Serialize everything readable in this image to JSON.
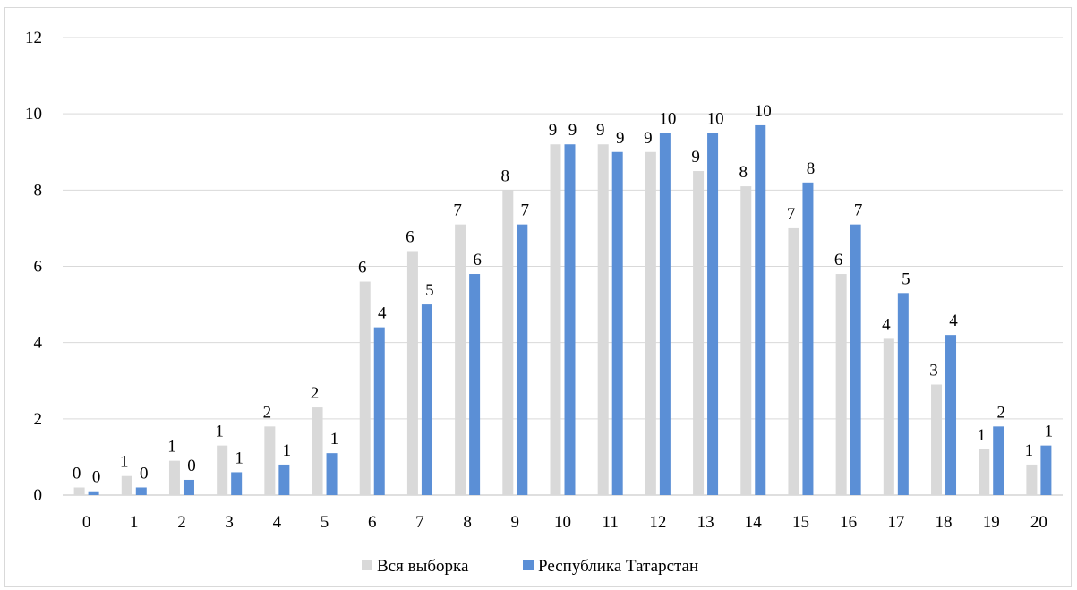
{
  "chart_data": {
    "type": "bar",
    "categories": [
      "0",
      "1",
      "2",
      "3",
      "4",
      "5",
      "6",
      "7",
      "8",
      "9",
      "10",
      "11",
      "12",
      "13",
      "14",
      "15",
      "16",
      "17",
      "18",
      "19",
      "20"
    ],
    "series": [
      {
        "name": "Вся выборка",
        "color": "#d9d9d9",
        "values": [
          0.2,
          0.5,
          0.9,
          1.3,
          1.8,
          2.3,
          5.6,
          6.4,
          7.1,
          8.0,
          9.2,
          9.2,
          9.0,
          8.5,
          8.1,
          7.0,
          5.8,
          4.1,
          2.9,
          1.2,
          0.8
        ],
        "labels": [
          "0",
          "1",
          "1",
          "1",
          "2",
          "2",
          "6",
          "6",
          "7",
          "8",
          "9",
          "9",
          "9",
          "9",
          "8",
          "7",
          "6",
          "4",
          "3",
          "1",
          "1"
        ]
      },
      {
        "name": "Республика Татарстан",
        "color": "#5b8fd6",
        "values": [
          0.1,
          0.2,
          0.4,
          0.6,
          0.8,
          1.1,
          4.4,
          5.0,
          5.8,
          7.1,
          9.2,
          9.0,
          9.5,
          9.5,
          9.7,
          8.2,
          7.1,
          5.3,
          4.2,
          1.8,
          1.3
        ],
        "labels": [
          "0",
          "0",
          "0",
          "1",
          "1",
          "1",
          "4",
          "5",
          "6",
          "7",
          "9",
          "9",
          "10",
          "10",
          "10",
          "8",
          "7",
          "5",
          "4",
          "2",
          "1"
        ]
      }
    ],
    "y_ticks": [
      "0",
      "2",
      "4",
      "6",
      "8",
      "10",
      "12"
    ],
    "ylim": [
      0,
      12
    ],
    "grid": true,
    "legend": "bottom-center"
  }
}
